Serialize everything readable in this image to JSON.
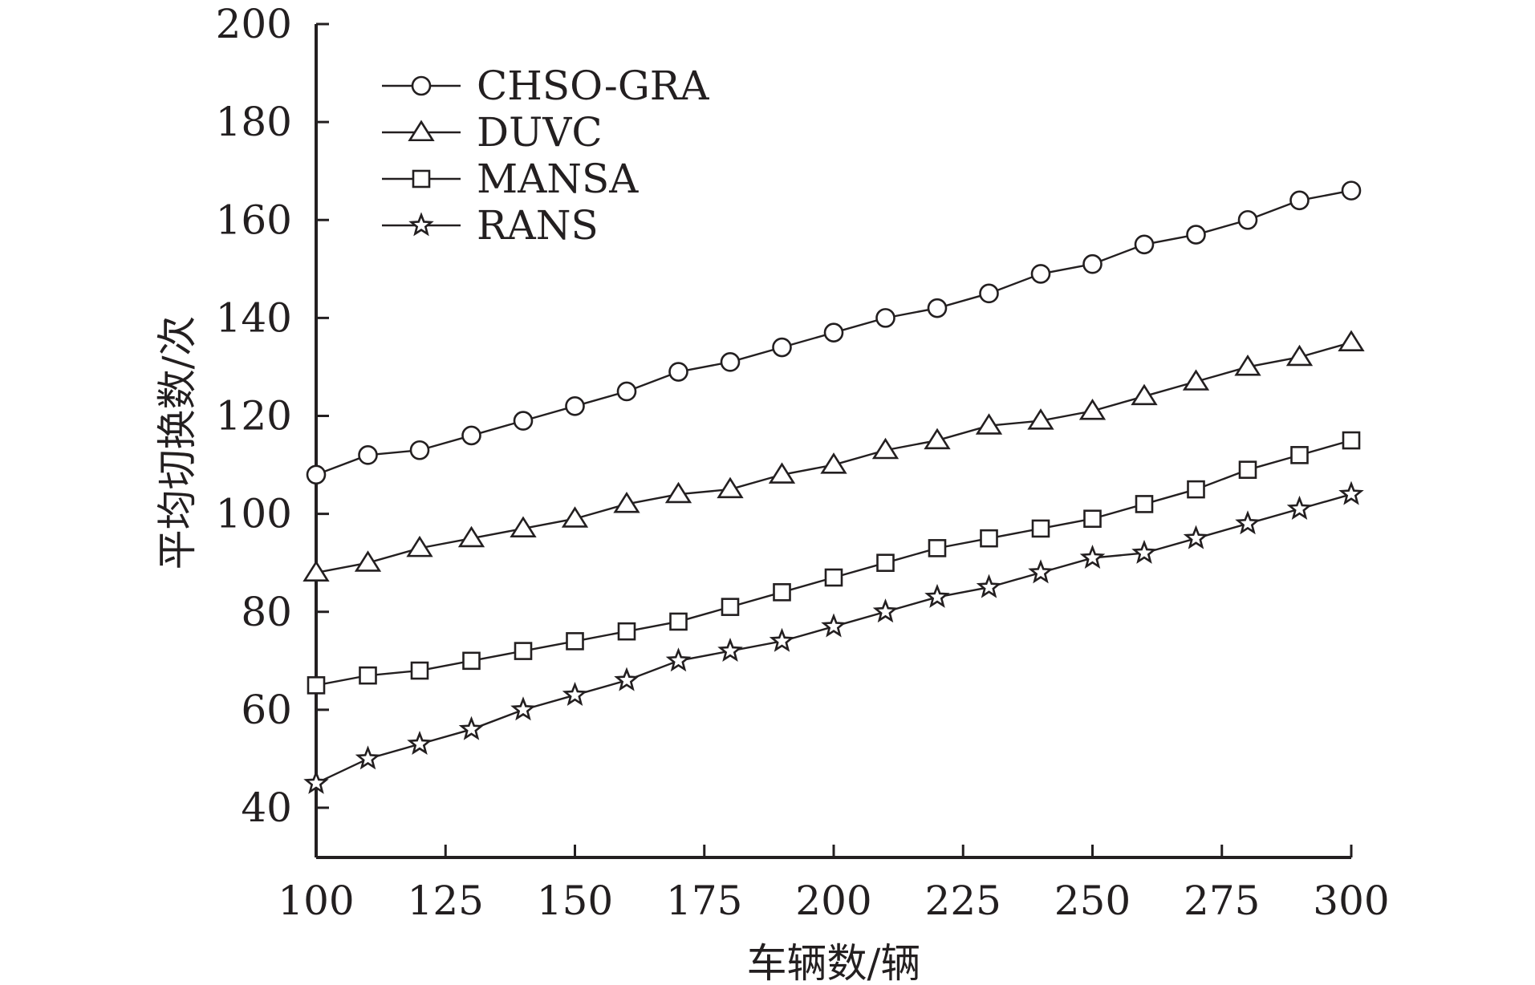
{
  "chart_data": {
    "type": "line",
    "xlabel": "车辆数/辆",
    "ylabel": "平均切换数/次",
    "xlim": [
      100,
      300
    ],
    "ylim": [
      30,
      200
    ],
    "xticks": [
      100,
      125,
      150,
      175,
      200,
      225,
      250,
      275,
      300
    ],
    "yticks": [
      40,
      60,
      80,
      100,
      120,
      140,
      160,
      180,
      200
    ],
    "grid": false,
    "legend_position": "top-left",
    "x": [
      100,
      110,
      120,
      130,
      140,
      150,
      160,
      170,
      180,
      190,
      200,
      210,
      220,
      230,
      240,
      250,
      260,
      270,
      280,
      290,
      300
    ],
    "series": [
      {
        "name": "CHSO-GRA",
        "marker": "circle",
        "values": [
          108,
          112,
          113,
          116,
          119,
          122,
          125,
          129,
          131,
          134,
          137,
          140,
          142,
          145,
          149,
          151,
          155,
          157,
          160,
          164,
          166
        ]
      },
      {
        "name": "DUVC",
        "marker": "triangle",
        "values": [
          88,
          90,
          93,
          95,
          97,
          99,
          102,
          104,
          105,
          108,
          110,
          113,
          115,
          118,
          119,
          121,
          124,
          127,
          130,
          132,
          135
        ]
      },
      {
        "name": "MANSA",
        "marker": "square",
        "values": [
          65,
          67,
          68,
          70,
          72,
          74,
          76,
          78,
          81,
          84,
          87,
          90,
          93,
          95,
          97,
          99,
          102,
          105,
          109,
          112,
          115
        ]
      },
      {
        "name": "RANS",
        "marker": "star",
        "values": [
          45,
          50,
          53,
          56,
          60,
          63,
          66,
          70,
          72,
          74,
          77,
          80,
          83,
          85,
          88,
          91,
          92,
          95,
          98,
          101,
          104
        ]
      }
    ],
    "colors": {
      "line": "#231f20",
      "marker_fill": "#ffffff"
    }
  }
}
